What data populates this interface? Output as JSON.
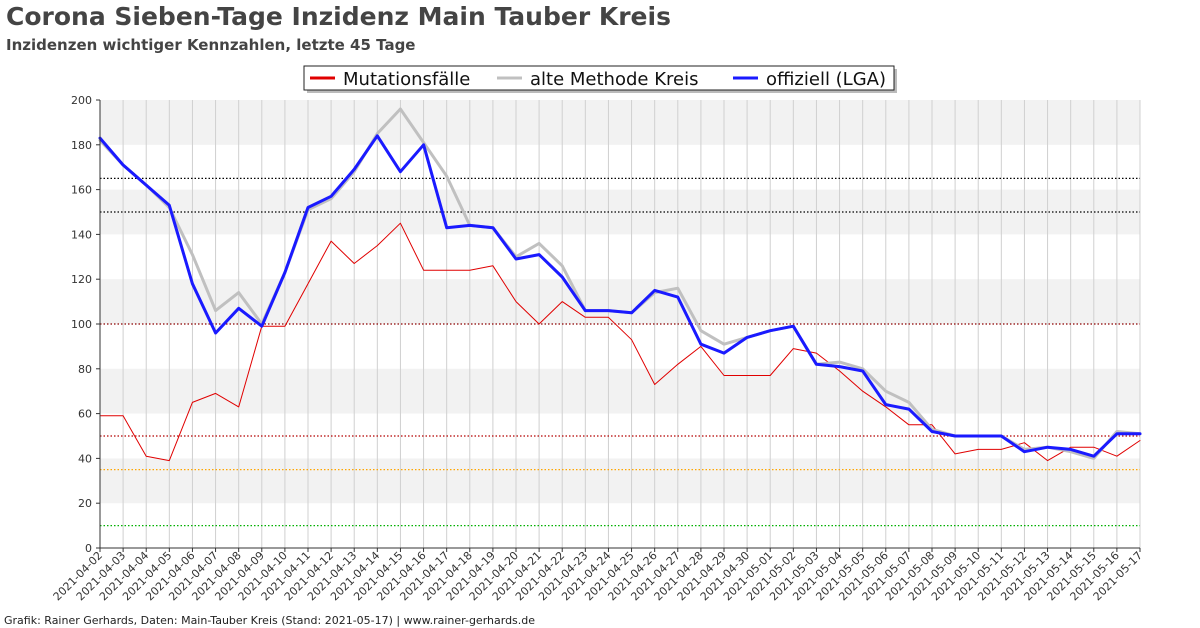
{
  "title": "Corona Sieben-Tage Inzidenz Main Tauber Kreis",
  "subtitle": "Inzidenzen wichtiger Kennzahlen, letzte 45 Tage",
  "footer": "Grafik: Rainer Gerhards, Daten: Main-Tauber Kreis (Stand: 2021-05-17) | www.rainer-gerhards.de",
  "chart_data": {
    "type": "line",
    "title": "Corona Sieben-Tage Inzidenz Main Tauber Kreis",
    "subtitle": "Inzidenzen wichtiger Kennzahlen, letzte 45 Tage",
    "xlabel": "",
    "ylabel": "",
    "ylim": [
      0,
      200
    ],
    "yticks": [
      0,
      20,
      40,
      60,
      80,
      100,
      120,
      140,
      160,
      180,
      200
    ],
    "grid": true,
    "legend_placement": "top-center",
    "x": [
      "2021-04-02",
      "2021-04-03",
      "2021-04-04",
      "2021-04-05",
      "2021-04-06",
      "2021-04-07",
      "2021-04-08",
      "2021-04-09",
      "2021-04-10",
      "2021-04-11",
      "2021-04-12",
      "2021-04-13",
      "2021-04-14",
      "2021-04-15",
      "2021-04-16",
      "2021-04-17",
      "2021-04-18",
      "2021-04-19",
      "2021-04-20",
      "2021-04-21",
      "2021-04-22",
      "2021-04-23",
      "2021-04-24",
      "2021-04-25",
      "2021-04-26",
      "2021-04-27",
      "2021-04-28",
      "2021-04-29",
      "2021-04-30",
      "2021-05-01",
      "2021-05-02",
      "2021-05-03",
      "2021-05-04",
      "2021-05-05",
      "2021-05-06",
      "2021-05-07",
      "2021-05-08",
      "2021-05-09",
      "2021-05-10",
      "2021-05-11",
      "2021-05-12",
      "2021-05-13",
      "2021-05-14",
      "2021-05-15",
      "2021-05-16",
      "2021-05-17"
    ],
    "series": [
      {
        "name": "Mutationsfälle",
        "color": "#e00000",
        "values": [
          59,
          59,
          41,
          39,
          65,
          69,
          63,
          99,
          99,
          118,
          137,
          127,
          135,
          145,
          124,
          124,
          124,
          126,
          110,
          100,
          110,
          103,
          103,
          93,
          73,
          82,
          90,
          77,
          77,
          77,
          89,
          87,
          79,
          70,
          63,
          55,
          55,
          42,
          44,
          44,
          47,
          39,
          45,
          45,
          41,
          48
        ]
      },
      {
        "name": "alte Methode Kreis",
        "color": "#c0c0c0",
        "values": [
          182,
          171,
          162,
          152,
          131,
          106,
          114,
          100,
          123,
          151,
          156,
          168,
          185,
          196,
          181,
          166,
          144,
          143,
          130,
          136,
          126,
          106,
          106,
          105,
          114,
          116,
          97,
          91,
          94,
          97,
          99,
          82,
          83,
          80,
          70,
          65,
          53,
          50,
          50,
          50,
          44,
          45,
          43,
          40,
          52,
          51
        ]
      },
      {
        "name": "offiziell (LGA)",
        "color": "#1a1aff",
        "values": [
          183,
          171,
          162,
          153,
          118,
          96,
          107,
          99,
          123,
          152,
          157,
          169,
          184,
          168,
          180,
          143,
          144,
          143,
          129,
          131,
          121,
          106,
          106,
          105,
          115,
          112,
          91,
          87,
          94,
          97,
          99,
          82,
          81,
          79,
          64,
          62,
          52,
          50,
          50,
          50,
          43,
          45,
          44,
          41,
          51,
          51
        ]
      }
    ],
    "reference_lines": [
      {
        "value": 165,
        "color": "#000000"
      },
      {
        "value": 150,
        "color": "#000000"
      },
      {
        "value": 100,
        "color": "#8b0000"
      },
      {
        "value": 50,
        "color": "#b30000"
      },
      {
        "value": 35,
        "color": "#ffa500"
      },
      {
        "value": 10,
        "color": "#00b000"
      }
    ]
  }
}
